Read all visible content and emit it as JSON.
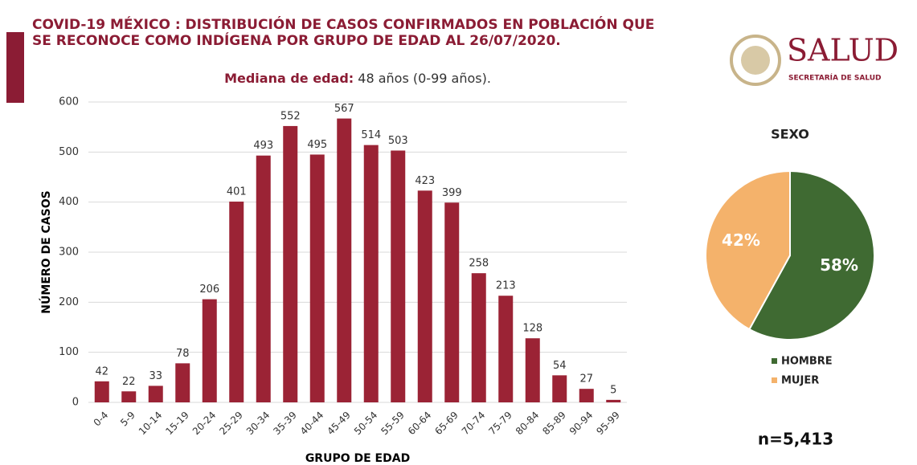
{
  "title_lines": [
    "COVID-19 MÉXICO : DISTRIBUCIÓN DE CASOS CONFIRMADOS EN POBLACIÓN QUE",
    "SE RECONOCE COMO INDÍGENA POR GRUPO DE EDAD AL 26/07/2020."
  ],
  "logo": {
    "name": "SALUD",
    "subtitle": "SECRETARÍA DE SALUD"
  },
  "chart_data": [
    {
      "type": "bar",
      "subtitle": {
        "label": "Mediana de edad:",
        "text": "48 años (0-99 años)."
      },
      "xlabel": "GRUPO DE EDAD",
      "ylabel": "NÚMERO DE CASOS",
      "categories": [
        "0-4",
        "5-9",
        "10-14",
        "15-19",
        "20-24",
        "25-29",
        "30-34",
        "35-39",
        "40-44",
        "45-49",
        "50-54",
        "55-59",
        "60-64",
        "65-69",
        "70-74",
        "75-79",
        "80-84",
        "85-89",
        "90-94",
        "95-99"
      ],
      "values": [
        42,
        22,
        33,
        78,
        206,
        401,
        493,
        552,
        495,
        567,
        514,
        503,
        423,
        399,
        258,
        213,
        128,
        54,
        27,
        5
      ],
      "color": "#9b2335",
      "ylim": [
        0,
        600
      ],
      "yticks": [
        0,
        100,
        200,
        300,
        400,
        500,
        600
      ],
      "grid": true
    },
    {
      "type": "pie",
      "title": "SEXO",
      "categories": [
        "HOMBRE",
        "MUJER"
      ],
      "values": [
        58,
        42
      ],
      "value_labels": [
        "58%",
        "42%"
      ],
      "colors": [
        "#3f6a32",
        "#f4b26b"
      ],
      "annotation": "n=5,413"
    }
  ]
}
